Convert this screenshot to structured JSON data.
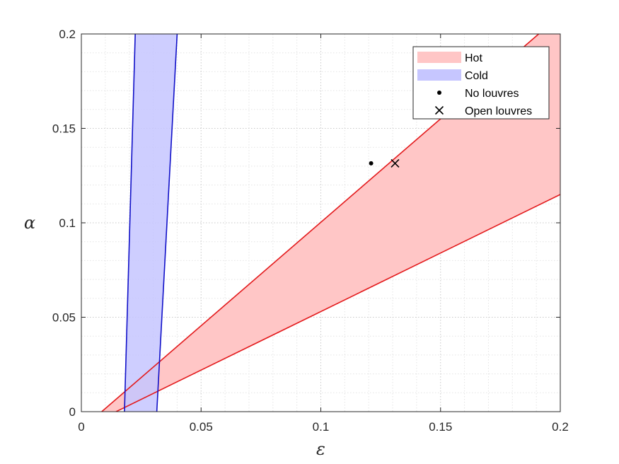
{
  "chart_data": {
    "type": "area",
    "title": "",
    "xlabel": "ε",
    "ylabel": "α",
    "xlim": [
      0,
      0.2
    ],
    "ylim": [
      0,
      0.2
    ],
    "xticks": [
      0,
      0.05,
      0.1,
      0.15,
      0.2
    ],
    "xtick_labels": [
      "0",
      "0.05",
      "0.1",
      "0.15",
      "0.2"
    ],
    "yticks": [
      0,
      0.05,
      0.1,
      0.15,
      0.2
    ],
    "ytick_labels": [
      "0",
      "0.05",
      "0.1",
      "0.15",
      "0.2"
    ],
    "grid": "major and minor, dotted",
    "legend_position": "top-right",
    "series": [
      {
        "name": "Hot",
        "kind": "band",
        "fill": "#ffc6c6",
        "edge": "#e31a1c",
        "upper_line": [
          [
            0.0085,
            0
          ],
          [
            0.191,
            0.2
          ]
        ],
        "lower_line": [
          [
            0.0145,
            0
          ],
          [
            0.2,
            0.115
          ]
        ]
      },
      {
        "name": "Cold",
        "kind": "band",
        "fill": "#c6c6ff",
        "edge": "#1010c8",
        "left_line": [
          [
            0.018,
            0
          ],
          [
            0.0225,
            0.2
          ]
        ],
        "right_line": [
          [
            0.0315,
            0
          ],
          [
            0.04,
            0.2
          ]
        ]
      },
      {
        "name": "No louvres",
        "kind": "marker",
        "marker": "dot",
        "x": 0.121,
        "y": 0.1315
      },
      {
        "name": "Open louvres",
        "kind": "marker",
        "marker": "x",
        "x": 0.131,
        "y": 0.1315
      }
    ]
  }
}
